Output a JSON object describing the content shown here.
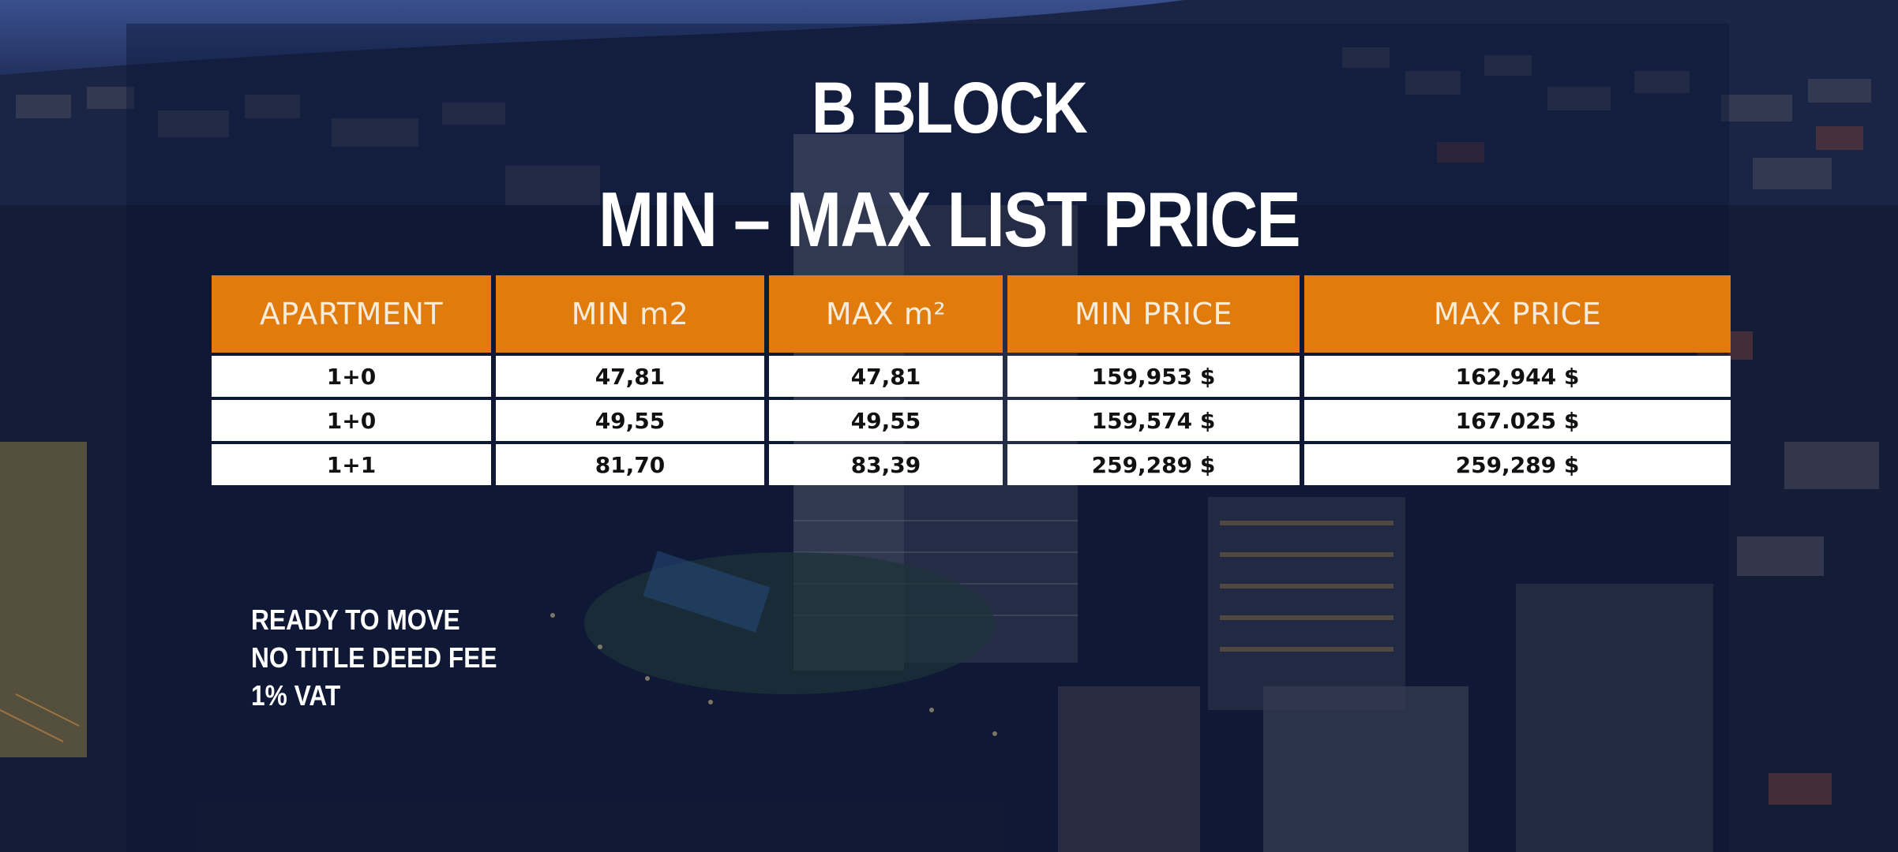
{
  "heading": {
    "block": "B BLOCK",
    "subtitle": "MIN – MAX LIST PRICE"
  },
  "table": {
    "headers": [
      "APARTMENT",
      "MIN m2",
      "MAX m²",
      "MIN PRICE",
      "MAX PRICE"
    ],
    "rows": [
      [
        "1+0",
        "47,81",
        "47,81",
        "159,953 $",
        "162,944 $"
      ],
      [
        "1+0",
        "49,55",
        "49,55",
        "159,574 $",
        "167.025 $"
      ],
      [
        "1+1",
        "81,70",
        "83,39",
        "259,289 $",
        "259,289 $"
      ]
    ]
  },
  "notes": [
    "READY TO MOVE",
    "NO TITLE DEED FEE",
    "1% VAT"
  ],
  "colors": {
    "header_bg": "#e07b0c",
    "header_text": "#f6ecdc",
    "cell_bg": "#ffffff",
    "cell_text": "#111111",
    "sky": "#1c2c5a"
  }
}
